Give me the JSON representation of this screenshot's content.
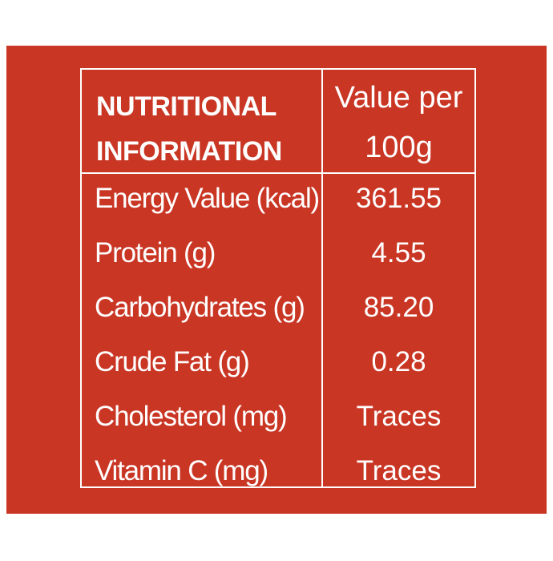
{
  "header": {
    "left_line1": "NUTRITIONAL",
    "left_line2": "INFORMATION",
    "right_line1": "Value per",
    "right_line2": "100g"
  },
  "rows": [
    {
      "name": "Energy Value (kcal)",
      "value": "361.55"
    },
    {
      "name": "Protein (g)",
      "value": "4.55"
    },
    {
      "name": "Carbohydrates (g)",
      "value": "85.20"
    },
    {
      "name": "Crude Fat (g)",
      "value": "0.28"
    },
    {
      "name": "Cholesterol (mg)",
      "value": "Traces"
    },
    {
      "name": "Vitamin C (mg)",
      "value": "Traces"
    }
  ],
  "colors": {
    "panel": "#c93624",
    "text": "#ffffff"
  }
}
